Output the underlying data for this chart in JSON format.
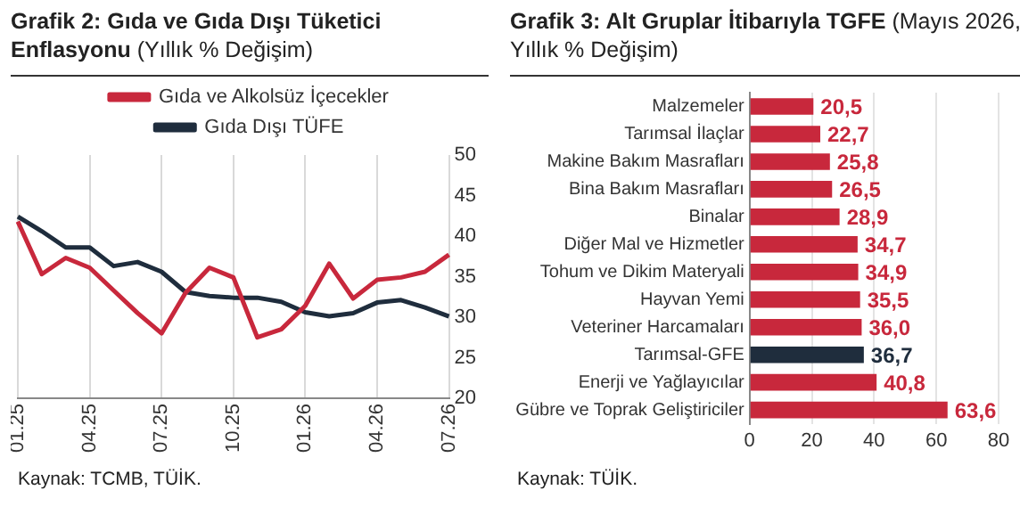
{
  "chart_data": [
    {
      "type": "line",
      "title": "Grafik 2: Gıda ve Gıda Dışı Tüketici Enflasyonu",
      "subtitle": "(Yıllık % Değişim)",
      "categories": [
        "01.25",
        null,
        null,
        "04.25",
        null,
        null,
        "07.25",
        null,
        null,
        "10.25",
        null,
        null,
        "01.26",
        null,
        null,
        "04.26",
        null,
        null,
        "07.26"
      ],
      "series": [
        {
          "name": "Gıda ve Alkolsüz İçecekler",
          "color": "#c8283c",
          "values": [
            41.8,
            35.3,
            37.3,
            36.1,
            33.3,
            30.5,
            28.0,
            33.0,
            36.1,
            34.9,
            27.5,
            28.5,
            31.4,
            36.6,
            32.3,
            34.6,
            34.9,
            35.6,
            37.7
          ]
        },
        {
          "name": "Gıda Dışı TÜFE",
          "color": "#1f2d3d",
          "values": [
            42.4,
            40.6,
            38.6,
            38.6,
            36.3,
            36.8,
            35.6,
            33.1,
            32.6,
            32.4,
            32.4,
            31.9,
            30.6,
            30.1,
            30.5,
            31.8,
            32.1,
            31.2,
            30.1
          ]
        }
      ],
      "ylim": [
        20,
        50
      ],
      "yticks": [
        20,
        25,
        30,
        35,
        40,
        45,
        50
      ],
      "grid": "x",
      "legend": "top",
      "marker": "none",
      "line_style": "solid",
      "annotations": [
        "Kaynak: TCMB, TÜİK."
      ]
    },
    {
      "type": "bar",
      "orientation": "horizontal",
      "title": "Grafik 3: Alt Gruplar İtibarıyla TGFE",
      "subtitle": "(Mayıs 2026, Yıllık % Değişim)",
      "categories": [
        "Malzemeler",
        "Tarımsal İlaçlar",
        "Makine Bakım Masrafları",
        "Bina Bakım Masrafları",
        "Binalar",
        "Diğer Mal ve Hizmetler",
        "Tohum ve Dikim Materyali",
        "Hayvan Yemi",
        "Veteriner Harcamaları",
        "Tarımsal-GFE",
        "Enerji ve Yağlayıcılar",
        "Gübre ve Toprak Geliştiriciler"
      ],
      "values": [
        20.5,
        22.7,
        25.8,
        26.5,
        28.9,
        34.7,
        34.9,
        35.5,
        36.0,
        36.7,
        40.8,
        63.6
      ],
      "value_labels": [
        "20,5",
        "22,7",
        "25,8",
        "26,5",
        "28,9",
        "34,7",
        "34,9",
        "35,5",
        "36,0",
        "36,7",
        "40,8",
        "63,6"
      ],
      "colors": [
        "#c8283c",
        "#c8283c",
        "#c8283c",
        "#c8283c",
        "#c8283c",
        "#c8283c",
        "#c8283c",
        "#c8283c",
        "#c8283c",
        "#1f2d3d",
        "#c8283c",
        "#c8283c"
      ],
      "xlim": [
        0,
        80
      ],
      "xticks": [
        0,
        20,
        40,
        60,
        80
      ],
      "grid": "x",
      "legend": false,
      "annotations": [
        "Kaynak: TÜİK."
      ]
    }
  ]
}
